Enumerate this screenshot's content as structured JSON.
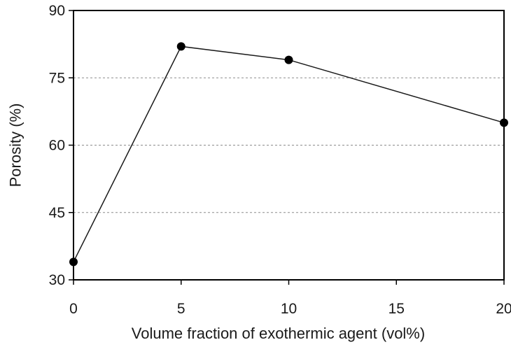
{
  "chart_data": {
    "type": "line",
    "title": "",
    "xlabel": "Volume fraction of exothermic agent (vol%)",
    "ylabel": "Porosity (%)",
    "xlim": [
      0,
      20
    ],
    "ylim": [
      30,
      90
    ],
    "x_ticks": [
      0,
      5,
      10,
      15,
      20
    ],
    "y_ticks": [
      30,
      45,
      60,
      75,
      90
    ],
    "x_tick_labels": [
      "0",
      "5",
      "10",
      "15",
      "20"
    ],
    "y_tick_labels": [
      "30",
      "45",
      "60",
      "75",
      "90"
    ],
    "grid": "horizontal-dashed",
    "legend": "none",
    "series": [
      {
        "x": [
          0,
          5,
          10,
          20
        ],
        "values": [
          34,
          82,
          79,
          65
        ]
      }
    ],
    "colors": {
      "line": "#1a1a1a",
      "marker": "#000000",
      "grid": "#8c8c8c",
      "frame": "#000000"
    }
  }
}
